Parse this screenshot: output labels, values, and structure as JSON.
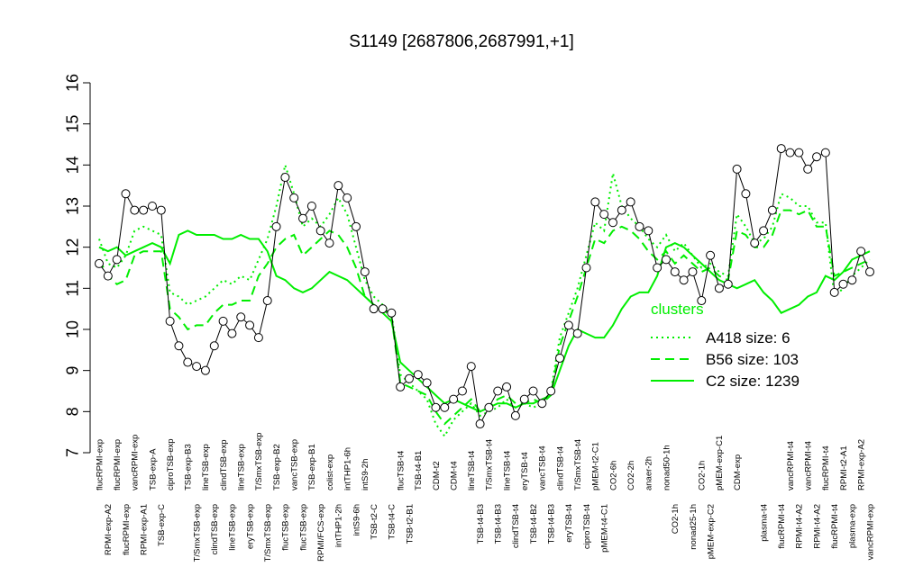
{
  "chart_data": {
    "type": "line",
    "title": "S1149 [2687806,2687991,+1]",
    "categories": [
      "flucRPMI-exp",
      "RPMI-exp-A2",
      "flucRPMI-exp",
      "flucRPMI-exp",
      "vancRPMI-exp",
      "RPMI-exp-A1",
      "TSB-exp-A",
      "TSB-exp-C",
      "ciproTSB-exp",
      null,
      "TSB-exp-B3",
      "T/SmxTSB-exp",
      "lineTSB-exp",
      "clindTSB-exp",
      "clindTSB-exp",
      "lineTSB-exp",
      "lineTSB-exp",
      "eryTSB-exp",
      "T/SmxTSB-exp",
      "T/SmxTSB-exp",
      "TSB-exp-B2",
      "flucTSB-exp",
      "vancTSB-exp",
      "flucTSB-exp",
      "TSB-exp-B1",
      "RPMI/FCS-exp",
      "colist-exp",
      "intTHP1-2h",
      "intTHP1-6h",
      "intS9-6h",
      "intS9-2h",
      "TSB-t2-C",
      null,
      "TSB-t4-C",
      "flucTSB-t4",
      "TSB-t2-B1",
      "TSB-t4-B1",
      null,
      "CDM-t2",
      null,
      "CDM-t4",
      null,
      "lineTSB-t4",
      "TSB-t4-B3",
      "T/SmxTSB-t4",
      "TSB-t4-B3",
      "lineTSB-t4",
      "clindTSB-t4",
      "eryTSB-t4",
      "TSB-t4-B2",
      "vancTSB-t4",
      "TSB-t4-B3",
      "clindTSB-t4",
      "eryTSB-t4",
      "T/SmxTSB-t4",
      "ciproTSB-t4",
      "pMEM-t2-C1",
      "pMEM-t4-C1",
      "CO2-6h",
      null,
      "CO2-2h",
      null,
      "anaer-2h",
      null,
      "nonad50-1h",
      "CO2-1h",
      null,
      "nonad25-1h",
      "CO2-1h",
      "pMEM-exp-C2",
      "pMEM-exp-C1",
      null,
      "CDM-exp",
      null,
      null,
      "plasma-t4",
      null,
      "flucRPMI-t4",
      "vancRPMI-t4",
      "RPMI-t4-A2",
      "vancRPMI-t4",
      "RPMI-t4-A2",
      "flucRPMI-t4",
      "flucRPMI-t4",
      "RPMI-t2-A1",
      "plasma-exp",
      "RPMI-exp-A2",
      "vancRPMI-exp"
    ],
    "series": [
      {
        "color": "#000000",
        "style": "solid",
        "markers": true,
        "values": [
          11.6,
          11.3,
          11.7,
          13.3,
          12.9,
          12.9,
          13.0,
          12.9,
          10.2,
          9.6,
          9.2,
          9.1,
          9.0,
          9.6,
          10.2,
          9.9,
          10.3,
          10.1,
          9.8,
          10.7,
          12.5,
          13.7,
          13.2,
          12.7,
          13.0,
          12.4,
          12.1,
          13.5,
          13.2,
          12.5,
          11.4,
          10.5,
          10.5,
          10.4,
          8.6,
          8.8,
          8.9,
          8.7,
          8.1,
          8.1,
          8.3,
          8.5,
          9.1,
          7.7,
          8.1,
          8.5,
          8.6,
          7.9,
          8.3,
          8.5,
          8.2,
          8.5,
          9.3,
          10.1,
          9.9,
          11.5,
          13.1,
          12.8,
          12.6,
          12.9,
          13.1,
          12.5,
          12.4,
          11.5,
          11.7,
          11.4,
          11.2,
          11.4,
          10.7,
          11.8,
          11.0,
          11.1,
          13.9,
          13.3,
          12.1,
          12.4,
          12.9,
          14.4,
          14.3,
          14.3,
          13.9,
          14.2,
          14.3,
          10.9,
          11.1,
          11.2,
          11.9,
          11.4
        ]
      },
      {
        "name": "A418 size: 6",
        "color": "#00ee00",
        "style": "dotted",
        "markers": false,
        "values": [
          12.2,
          11.6,
          11.5,
          11.8,
          12.4,
          12.5,
          12.4,
          12.3,
          10.9,
          10.8,
          10.6,
          10.7,
          10.8,
          11.0,
          11.2,
          11.1,
          11.3,
          11.2,
          11.7,
          12.2,
          13.0,
          14.0,
          13.3,
          12.5,
          12.7,
          12.5,
          12.8,
          13.2,
          12.8,
          12.0,
          11.2,
          10.8,
          10.6,
          10.4,
          8.9,
          8.7,
          8.5,
          8.3,
          7.7,
          7.4,
          7.8,
          8.0,
          8.2,
          7.9,
          8.0,
          8.1,
          8.3,
          8.1,
          8.2,
          8.1,
          8.2,
          8.5,
          9.8,
          10.4,
          11.0,
          11.8,
          12.6,
          12.4,
          13.8,
          13.0,
          12.7,
          12.5,
          12.2,
          12.0,
          12.3,
          11.9,
          12.1,
          11.8,
          11.5,
          11.6,
          11.4,
          11.3,
          12.8,
          12.5,
          12.1,
          12.2,
          12.5,
          13.3,
          13.2,
          13.0,
          13.0,
          12.6,
          12.6,
          10.8,
          11.0,
          11.3,
          11.5,
          11.7
        ]
      },
      {
        "name": "B56 size: 103",
        "color": "#00ee00",
        "style": "dashed",
        "markers": false,
        "values": [
          11.7,
          11.3,
          11.1,
          11.2,
          11.8,
          11.9,
          11.9,
          11.9,
          10.5,
          10.3,
          10.0,
          10.1,
          10.1,
          10.4,
          10.6,
          10.6,
          10.7,
          10.7,
          11.3,
          11.6,
          12.0,
          12.2,
          12.3,
          11.8,
          12.0,
          12.2,
          12.4,
          12.3,
          12.0,
          11.5,
          10.8,
          10.6,
          10.5,
          10.3,
          8.7,
          8.6,
          8.5,
          8.4,
          8.0,
          7.7,
          7.9,
          8.1,
          8.3,
          8.0,
          8.1,
          8.3,
          8.4,
          8.2,
          8.2,
          8.3,
          8.2,
          8.4,
          9.6,
          10.2,
          10.8,
          11.5,
          12.2,
          12.1,
          12.4,
          12.5,
          12.4,
          12.2,
          11.9,
          11.7,
          11.9,
          11.6,
          11.8,
          11.6,
          11.4,
          11.5,
          11.3,
          11.2,
          12.4,
          12.3,
          12.0,
          12.0,
          12.3,
          12.9,
          12.9,
          12.8,
          12.9,
          12.5,
          12.5,
          11.3,
          11.4,
          11.5,
          11.6,
          11.7
        ]
      },
      {
        "name": "C2 size: 1239",
        "color": "#00ee00",
        "style": "solid",
        "markers": false,
        "values": [
          12.0,
          11.9,
          12.0,
          11.8,
          11.9,
          12.0,
          12.1,
          12.0,
          11.6,
          12.3,
          12.4,
          12.3,
          12.3,
          12.3,
          12.2,
          12.2,
          12.3,
          12.2,
          12.2,
          11.9,
          11.3,
          11.2,
          11.0,
          10.9,
          11.0,
          11.2,
          11.4,
          11.3,
          11.2,
          11.0,
          10.8,
          10.6,
          10.4,
          10.2,
          9.2,
          9.0,
          8.8,
          8.6,
          8.4,
          8.2,
          8.3,
          8.2,
          8.1,
          8.0,
          8.1,
          8.2,
          8.2,
          8.1,
          8.2,
          8.2,
          8.3,
          8.4,
          9.0,
          9.6,
          10.0,
          9.9,
          9.8,
          9.8,
          10.1,
          10.5,
          10.8,
          10.9,
          10.9,
          11.3,
          12.0,
          12.1,
          12.0,
          11.8,
          11.6,
          11.4,
          11.2,
          11.1,
          11.0,
          11.1,
          11.2,
          10.9,
          10.7,
          10.4,
          10.5,
          10.6,
          10.8,
          10.9,
          11.3,
          11.2,
          11.4,
          11.7,
          11.8,
          11.9
        ]
      }
    ],
    "legend_title": "clusters",
    "ylim": [
      7,
      16
    ],
    "yticks": [
      7,
      8,
      9,
      10,
      11,
      12,
      13,
      14,
      15,
      16
    ]
  }
}
